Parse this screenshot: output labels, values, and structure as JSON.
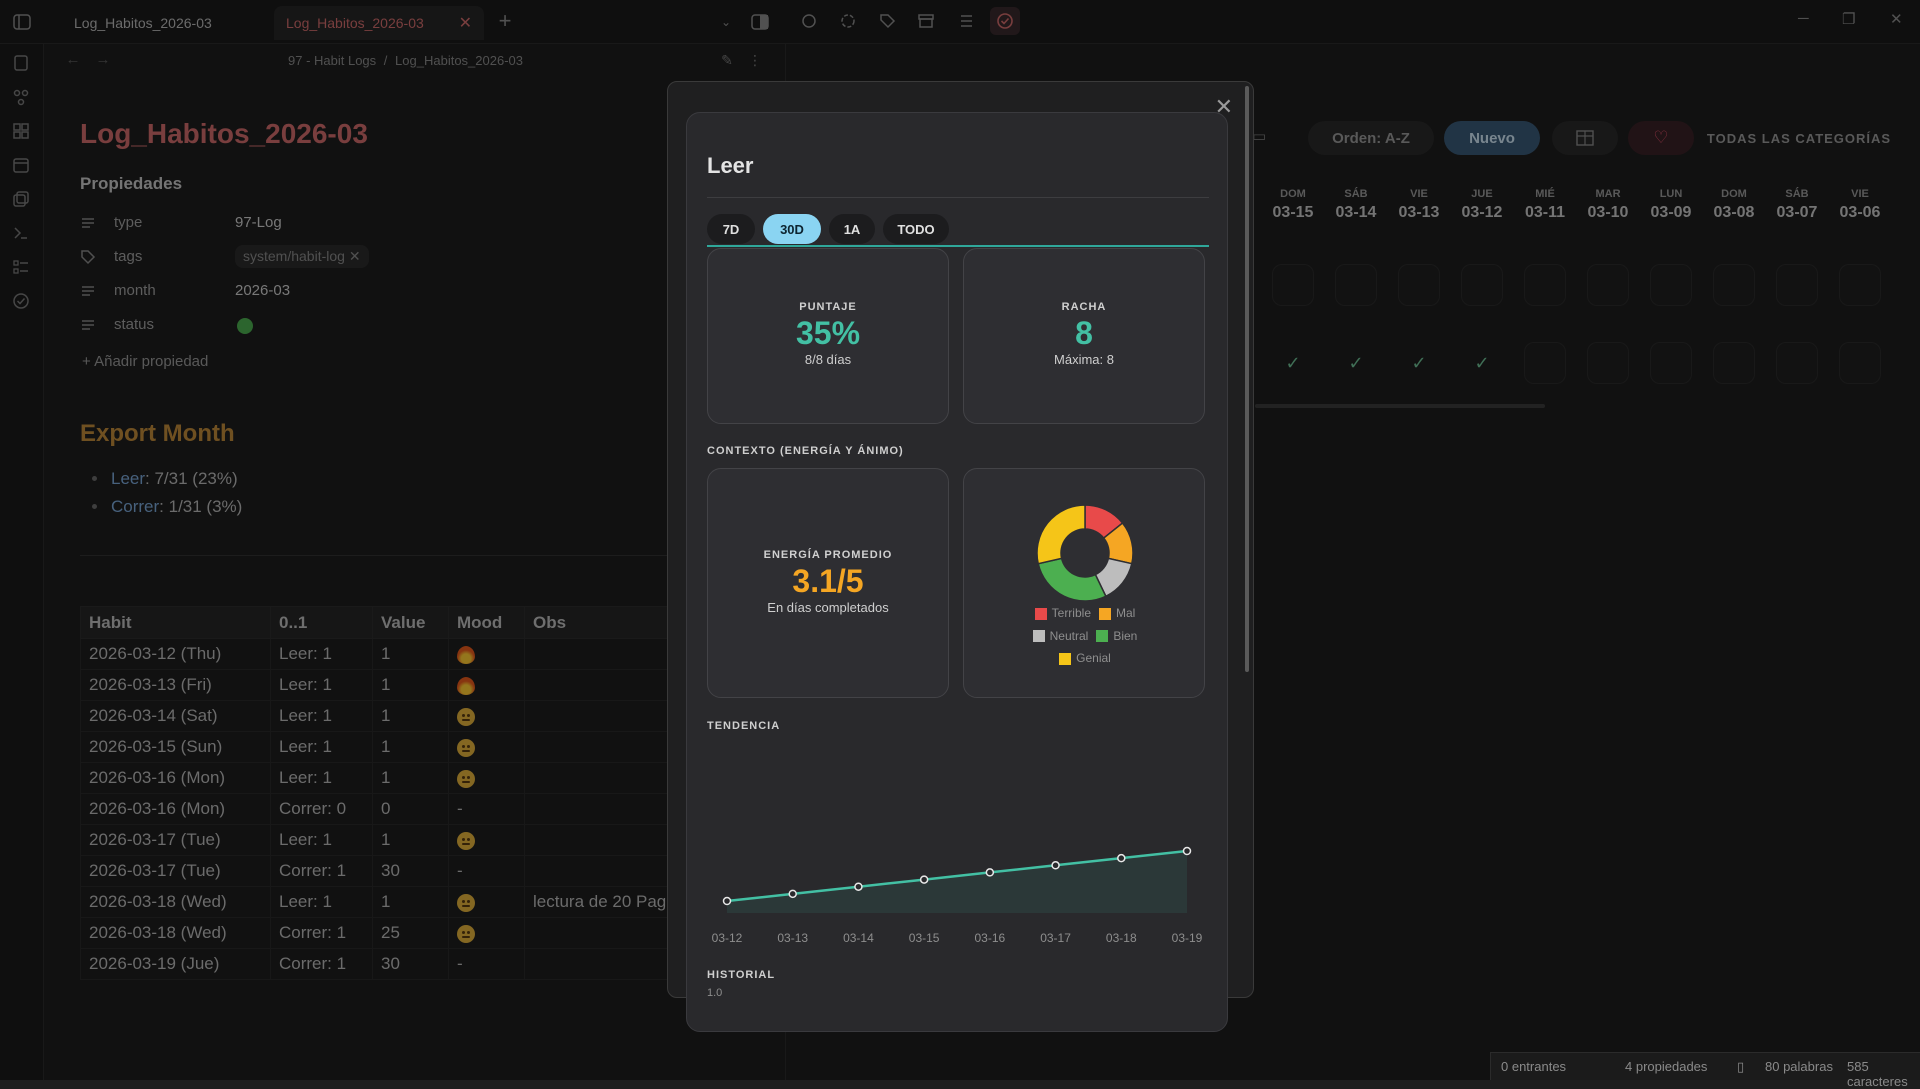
{
  "tabs": [
    {
      "label": "Log_Habitos_2026-03"
    },
    {
      "label": "Log_Habitos_2026-03"
    }
  ],
  "breadcrumb": {
    "folder": "97 - Habit Logs",
    "sep": "/",
    "file": "Log_Habitos_2026-03"
  },
  "note": {
    "title": "Log_Habitos_2026-03",
    "properties_heading": "Propiedades",
    "properties": [
      {
        "key": "type",
        "value": "97-Log",
        "icon": "list-icon"
      },
      {
        "key": "tags",
        "value": "system/habit-log",
        "icon": "tag-icon"
      },
      {
        "key": "month",
        "value": "2026-03",
        "icon": "list-icon"
      },
      {
        "key": "status",
        "value": "",
        "icon": "list-icon",
        "dot_color": "#4caf50"
      }
    ],
    "add_property": "Añadir propiedad",
    "export_heading": "Export Month",
    "export_items": [
      {
        "link": "Leer",
        "text": ": 7/31 (23%)"
      },
      {
        "link": "Correr",
        "text": ": 1/31 (3%)"
      }
    ],
    "table": {
      "headers": [
        "Habit",
        "0..1",
        "Value",
        "Mood",
        "Obs"
      ],
      "rows": [
        {
          "habit": "2026-03-12 (Thu)",
          "v01": "Leer: 1",
          "value": "1",
          "mood": "fire",
          "obs": ""
        },
        {
          "habit": "2026-03-13 (Fri)",
          "v01": "Leer: 1",
          "value": "1",
          "mood": "fire",
          "obs": ""
        },
        {
          "habit": "2026-03-14 (Sat)",
          "v01": "Leer: 1",
          "value": "1",
          "mood": "face",
          "obs": ""
        },
        {
          "habit": "2026-03-15 (Sun)",
          "v01": "Leer: 1",
          "value": "1",
          "mood": "face",
          "obs": ""
        },
        {
          "habit": "2026-03-16 (Mon)",
          "v01": "Leer: 1",
          "value": "1",
          "mood": "face",
          "obs": ""
        },
        {
          "habit": "2026-03-16 (Mon)",
          "v01": "Correr: 0",
          "value": "0",
          "mood": "-",
          "obs": ""
        },
        {
          "habit": "2026-03-17 (Tue)",
          "v01": "Leer: 1",
          "value": "1",
          "mood": "face",
          "obs": ""
        },
        {
          "habit": "2026-03-17 (Tue)",
          "v01": "Correr: 1",
          "value": "30",
          "mood": "-",
          "obs": ""
        },
        {
          "habit": "2026-03-18 (Wed)",
          "v01": "Leer: 1",
          "value": "1",
          "mood": "face",
          "obs": "lectura de 20 Pag"
        },
        {
          "habit": "2026-03-18 (Wed)",
          "v01": "Correr: 1",
          "value": "25",
          "mood": "face",
          "obs": ""
        },
        {
          "habit": "2026-03-19 (Jue)",
          "v01": "Correr: 1",
          "value": "30",
          "mood": "-",
          "obs": ""
        }
      ]
    }
  },
  "habit_grid": {
    "sort_label": "Orden: A-Z",
    "new_label": "Nuevo",
    "categories_label": "TODAS LAS CATEGORÍAS",
    "days": [
      {
        "name": "DOM",
        "date": "03-15"
      },
      {
        "name": "SÁB",
        "date": "03-14"
      },
      {
        "name": "VIE",
        "date": "03-13"
      },
      {
        "name": "JUE",
        "date": "03-12"
      },
      {
        "name": "MIÉ",
        "date": "03-11"
      },
      {
        "name": "MAR",
        "date": "03-10"
      },
      {
        "name": "LUN",
        "date": "03-09"
      },
      {
        "name": "DOM",
        "date": "03-08"
      },
      {
        "name": "SÁB",
        "date": "03-07"
      },
      {
        "name": "VIE",
        "date": "03-06"
      }
    ],
    "row2_checked": [
      true,
      true,
      true,
      true,
      false,
      false,
      false,
      false,
      false,
      false
    ]
  },
  "modal": {
    "title": "Leer",
    "ranges": [
      {
        "label": "7D",
        "active": false
      },
      {
        "label": "30D",
        "active": true
      },
      {
        "label": "1A",
        "active": false
      },
      {
        "label": "TODO",
        "active": false
      }
    ],
    "score": {
      "label": "PUNTAJE",
      "value": "35%",
      "sub": "8/8 días",
      "color": "#43c0a4"
    },
    "streak": {
      "label": "RACHA",
      "value": "8",
      "sub": "Máxima: 8",
      "color": "#43c0a4"
    },
    "context_heading": "CONTEXTO (ENERGÍA Y ÁNIMO)",
    "energy": {
      "label": "ENERGÍA PROMEDIO",
      "value": "3.1/5",
      "sub": "En días completados",
      "color": "#f5a623"
    },
    "trend_heading": "TENDENCIA",
    "history_heading": "HISTORIAL",
    "history_tick": "1.0"
  },
  "chart_data": [
    {
      "type": "pie",
      "title": "",
      "legend_placement": "bottom",
      "categories": [
        "Terrible",
        "Mal",
        "Neutral",
        "Bien",
        "Genial"
      ],
      "values": [
        2,
        2,
        2,
        4,
        4
      ],
      "colors": [
        "#e84a4a",
        "#f5a623",
        "#bdbdbd",
        "#4caf50",
        "#f5c518"
      ]
    },
    {
      "type": "area",
      "title": "",
      "x": [
        "03-12",
        "03-13",
        "03-14",
        "03-15",
        "03-16",
        "03-17",
        "03-18",
        "03-19"
      ],
      "series": [
        {
          "values": [
            1,
            2,
            3,
            4,
            5,
            6,
            7,
            8
          ]
        }
      ],
      "ylim": [
        0,
        8
      ],
      "grid": false,
      "color": "#43c0a4"
    }
  ],
  "statusbar": {
    "backlinks": "0 entrantes",
    "props": "4 propiedades",
    "words": "80 palabras",
    "chars": "585 caracteres"
  }
}
